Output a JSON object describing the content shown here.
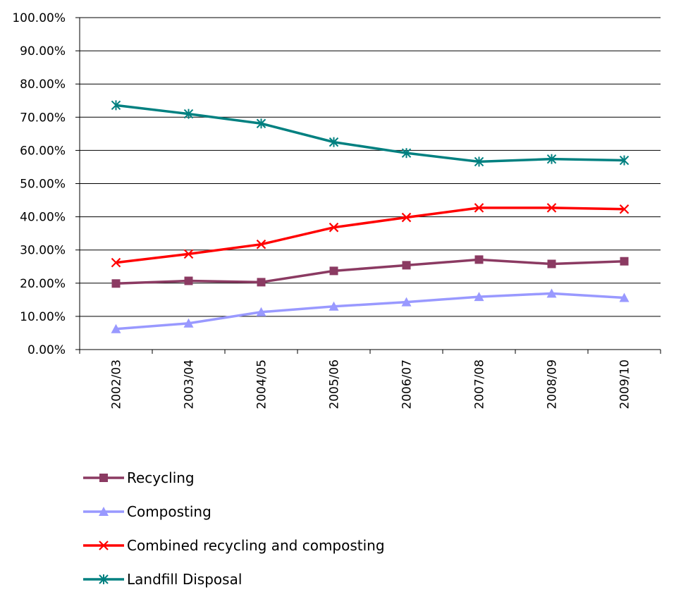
{
  "chart_data": {
    "type": "line",
    "title": "",
    "xlabel": "",
    "ylabel": "",
    "categories": [
      "2002/03",
      "2003/04",
      "2004/05",
      "2005/06",
      "2006/07",
      "2007/08",
      "2008/09",
      "2009/10"
    ],
    "ylim": [
      0,
      100
    ],
    "yticks": [
      "0.00%",
      "10.00%",
      "20.00%",
      "30.00%",
      "40.00%",
      "50.00%",
      "60.00%",
      "70.00%",
      "80.00%",
      "90.00%",
      "100.00%"
    ],
    "grid": true,
    "legend_position": "bottom",
    "series": [
      {
        "name": "Recycling",
        "color": "#8B3A62",
        "marker": "square",
        "values": [
          19.9,
          20.7,
          20.3,
          23.7,
          25.4,
          27.1,
          25.8,
          26.6
        ]
      },
      {
        "name": "Composting",
        "color": "#9999FF",
        "marker": "triangle",
        "values": [
          6.2,
          7.9,
          11.3,
          13.0,
          14.3,
          15.9,
          16.9,
          15.6
        ]
      },
      {
        "name": "Combined recycling and composting",
        "color": "#FF0000",
        "marker": "x",
        "values": [
          26.2,
          28.8,
          31.7,
          36.8,
          39.8,
          42.7,
          42.7,
          42.3
        ]
      },
      {
        "name": "Landfill Disposal",
        "color": "#008080",
        "marker": "star",
        "values": [
          73.6,
          71.0,
          68.1,
          62.5,
          59.2,
          56.6,
          57.4,
          57.0
        ]
      }
    ]
  }
}
